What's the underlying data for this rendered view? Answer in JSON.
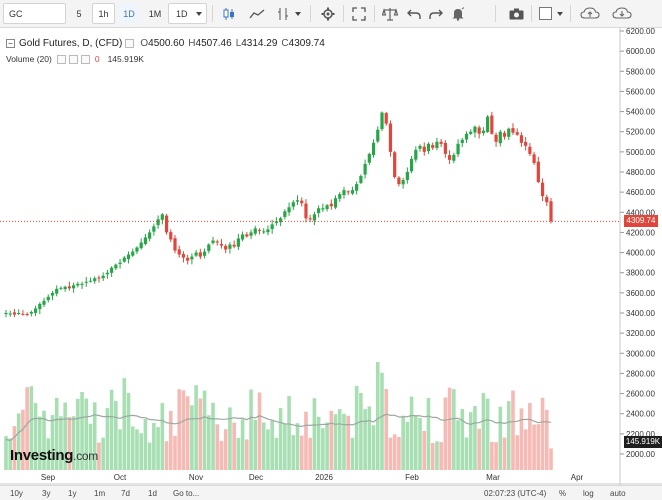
{
  "toolbar": {
    "symbol": "GC",
    "intervals": [
      "5",
      "1h",
      "1D",
      "1M",
      "1D"
    ],
    "active_interval_index": 2,
    "icons": [
      "dropdown-arrow-icon",
      "candles-icon",
      "line-chart-icon",
      "indicators-icon",
      "dropdown-arrow-icon",
      "settings-icon",
      "fullscreen-icon",
      "compare-icon",
      "undo-icon",
      "redo-icon",
      "alert-icon",
      "camera-icon",
      "layout-icon",
      "dropdown-arrow-icon",
      "cloud-save-icon",
      "cloud-load-icon"
    ]
  },
  "legend": {
    "title": "Gold Futures, D, (CFD)",
    "open_label": "O",
    "open": "4500.60",
    "high_label": "H",
    "high": "4507.46",
    "low_label": "L",
    "low": "4314.29",
    "close_label": "C",
    "close": "4309.74",
    "volume_label": "Volume (20)",
    "volume_zero": "0",
    "volume_value": "145.919K"
  },
  "price_axis": {
    "ticks": [
      "6200.00",
      "6000.00",
      "5800.00",
      "5600.00",
      "5400.00",
      "5200.00",
      "5000.00",
      "4800.00",
      "4600.00",
      "4400.00",
      "4200.00",
      "4000.00",
      "3800.00",
      "3600.00",
      "3400.00",
      "3200.00",
      "3000.00",
      "2800.00",
      "2600.00",
      "2400.00",
      "2200.00",
      "2000.00"
    ],
    "last_price": "4309.74",
    "last_volume": "145.919K"
  },
  "time_axis": {
    "labels": [
      "Sep",
      "Oct",
      "Nov",
      "Dec",
      "2026",
      "Feb",
      "Mar",
      "Apr"
    ]
  },
  "logo": {
    "name": "Investing",
    "suffix": ".com"
  },
  "bottombar": {
    "ranges": [
      "10y",
      "3y",
      "1y",
      "1m",
      "7d",
      "1d"
    ],
    "goto": "Go to...",
    "time": "02:07:23 (UTC-4)",
    "percent": "%",
    "log": "log",
    "auto": "auto"
  },
  "colors": {
    "up": "#26a646",
    "down": "#e0463b",
    "vol_up": "#a7dfb3",
    "vol_down": "#f6b9b4",
    "vol_ma": "#9aa8a0",
    "accent": "#3975c6"
  },
  "chart_data": {
    "type": "candlestick",
    "title": "Gold Futures, D, (CFD)",
    "price_range": [
      1900,
      6250
    ],
    "candle_closes_approx": [
      3400,
      3395,
      3385,
      3400,
      3390,
      3380,
      3410,
      3445,
      3490,
      3520,
      3560,
      3600,
      3640,
      3650,
      3660,
      3645,
      3675,
      3690,
      3690,
      3710,
      3720,
      3745,
      3750,
      3770,
      3800,
      3850,
      3880,
      3900,
      3950,
      3980,
      4010,
      4050,
      4100,
      4150,
      4200,
      4260,
      4330,
      4380,
      4200,
      4130,
      4020,
      3980,
      3950,
      3920,
      3960,
      4000,
      3960,
      4010,
      4080,
      4120,
      4100,
      4070,
      4030,
      4080,
      4060,
      4140,
      4180,
      4160,
      4200,
      4240,
      4220,
      4210,
      4230,
      4280,
      4310,
      4340,
      4410,
      4450,
      4500,
      4520,
      4490,
      4340,
      4330,
      4380,
      4440,
      4440,
      4470,
      4460,
      4540,
      4580,
      4620,
      4600,
      4620,
      4680,
      4760,
      4880,
      4980,
      5090,
      5220,
      5390,
      5280,
      5000,
      4750,
      4680,
      4720,
      4800,
      4930,
      5020,
      5060,
      5000,
      5080,
      5040,
      5100,
      5080,
      4980,
      4920,
      4970,
      5080,
      5120,
      5180,
      5200,
      5250,
      5180,
      5210,
      5350,
      5180,
      5100,
      5200,
      5150,
      5230,
      5190,
      5170,
      5090,
      5060,
      4980,
      4890,
      4700,
      4560,
      4500,
      4310
    ],
    "volume_range": [
      1900,
      6250
    ],
    "ylabel": "",
    "xlabel": ""
  }
}
